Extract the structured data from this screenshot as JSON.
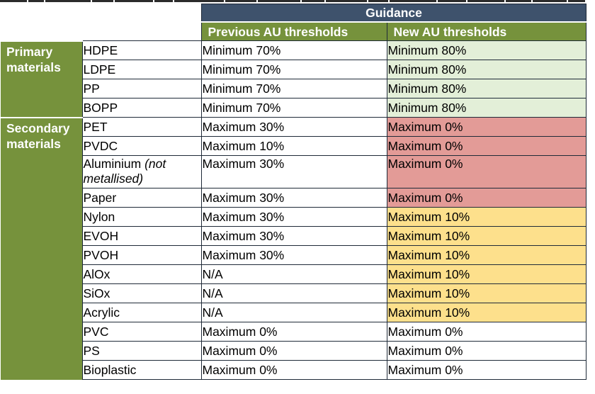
{
  "header": {
    "guidance": "Guidance",
    "previous_label": "Previous AU thresholds",
    "new_label": "New AU thresholds"
  },
  "groups": [
    {
      "label": "Primary materials"
    },
    {
      "label": "Secondary materials"
    }
  ],
  "rows": [
    {
      "material": "HDPE",
      "previous": "Minimum 70%",
      "new": "Minimum 80%"
    },
    {
      "material": "LDPE",
      "previous": "Minimum 70%",
      "new": "Minimum 80%"
    },
    {
      "material": "PP",
      "previous": "Minimum 70%",
      "new": "Minimum 80%"
    },
    {
      "material": "BOPP",
      "previous": "Minimum 70%",
      "new": "Minimum 80%"
    },
    {
      "material": "PET",
      "previous": "Maximum 30%",
      "new": "Maximum 0%"
    },
    {
      "material": "PVDC",
      "previous": "Maximum 10%",
      "new": "Maximum 0%"
    },
    {
      "material": "Aluminium",
      "material_note": "(not metallised)",
      "previous": "Maximum 30%",
      "new": "Maximum 0%"
    },
    {
      "material": "Paper",
      "previous": "Maximum 30%",
      "new": "Maximum 0%"
    },
    {
      "material": "Nylon",
      "previous": "Maximum 30%",
      "new": "Maximum 10%"
    },
    {
      "material": "EVOH",
      "previous": "Maximum 30%",
      "new": "Maximum 10%"
    },
    {
      "material": "PVOH",
      "previous": "Maximum 30%",
      "new": "Maximum 10%"
    },
    {
      "material": "AlOx",
      "previous": "N/A",
      "new": "Maximum 10%"
    },
    {
      "material": "SiOx",
      "previous": "N/A",
      "new": "Maximum 10%"
    },
    {
      "material": "Acrylic",
      "previous": "N/A",
      "new": "Maximum 10%"
    },
    {
      "material": "PVC",
      "previous": "Maximum 0%",
      "new": "Maximum 0%"
    },
    {
      "material": "PS",
      "previous": "Maximum 0%",
      "new": "Maximum 0%"
    },
    {
      "material": "Bioplastic",
      "previous": "Maximum 0%",
      "new": "Maximum 0%"
    }
  ],
  "colors": {
    "header_navy": "#3e526c",
    "header_green": "#76923c",
    "cell_green": "#e3efd8",
    "cell_red": "#e39b97",
    "cell_yellow": "#fde08c",
    "border": "#1f2a38"
  }
}
